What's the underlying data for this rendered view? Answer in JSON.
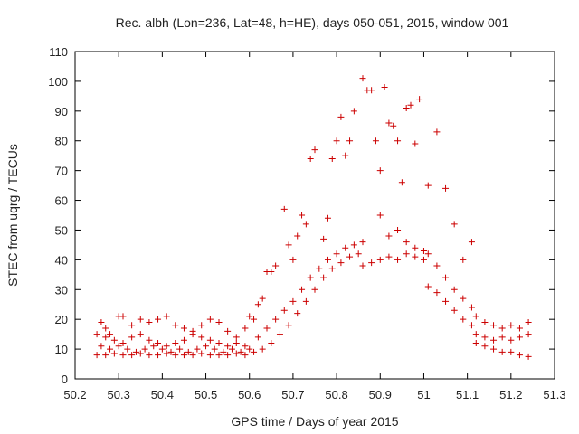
{
  "chart_data": {
    "type": "scatter",
    "title": "Rec. albh (Lon=236, Lat=48, h=HE), days 050-051, 2015, window 001",
    "xlabel": "GPS time / Days of year 2015",
    "ylabel": "STEC from uqrg / TECUs",
    "xlim": [
      50.2,
      51.3
    ],
    "ylim": [
      0,
      110
    ],
    "xticks": [
      "50.2",
      "50.3",
      "50.4",
      "50.5",
      "50.6",
      "50.7",
      "50.8",
      "50.9",
      "51",
      "51.1",
      "51.2",
      "51.3"
    ],
    "yticks": [
      "0",
      "10",
      "20",
      "30",
      "40",
      "50",
      "60",
      "70",
      "80",
      "90",
      "100",
      "110"
    ],
    "grid": false,
    "legend": "none",
    "marker": "plus",
    "series_color": "#cc0000",
    "series": [
      {
        "points": [
          [
            50.26,
            19
          ],
          [
            50.27,
            17
          ],
          [
            50.28,
            15
          ],
          [
            50.3,
            21
          ],
          [
            50.31,
            21
          ],
          [
            50.33,
            18
          ],
          [
            50.35,
            20
          ],
          [
            50.37,
            19
          ],
          [
            50.39,
            20
          ],
          [
            50.41,
            21
          ],
          [
            50.43,
            18
          ],
          [
            50.45,
            17
          ],
          [
            50.47,
            16
          ],
          [
            50.49,
            18
          ],
          [
            50.51,
            20
          ],
          [
            50.53,
            19
          ],
          [
            50.55,
            16
          ],
          [
            50.57,
            14
          ],
          [
            50.59,
            17
          ],
          [
            50.6,
            21
          ],
          [
            50.25,
            15
          ],
          [
            50.27,
            14
          ],
          [
            50.29,
            13
          ],
          [
            50.31,
            12
          ],
          [
            50.33,
            14
          ],
          [
            50.35,
            15
          ],
          [
            50.37,
            13
          ],
          [
            50.39,
            12
          ],
          [
            50.41,
            11
          ],
          [
            50.43,
            12
          ],
          [
            50.45,
            13
          ],
          [
            50.47,
            15
          ],
          [
            50.49,
            14
          ],
          [
            50.51,
            13
          ],
          [
            50.53,
            12
          ],
          [
            50.55,
            11
          ],
          [
            50.57,
            12
          ],
          [
            50.59,
            11
          ],
          [
            50.26,
            11
          ],
          [
            50.28,
            10
          ],
          [
            50.3,
            11
          ],
          [
            50.32,
            10
          ],
          [
            50.34,
            9
          ],
          [
            50.36,
            10
          ],
          [
            50.38,
            11
          ],
          [
            50.4,
            10
          ],
          [
            50.42,
            9
          ],
          [
            50.44,
            10
          ],
          [
            50.46,
            9
          ],
          [
            50.48,
            10
          ],
          [
            50.5,
            11
          ],
          [
            50.52,
            10
          ],
          [
            50.54,
            9
          ],
          [
            50.56,
            10
          ],
          [
            50.58,
            9
          ],
          [
            50.6,
            10
          ],
          [
            50.25,
            8
          ],
          [
            50.27,
            8
          ],
          [
            50.29,
            8.5
          ],
          [
            50.31,
            8
          ],
          [
            50.33,
            8
          ],
          [
            50.35,
            8.5
          ],
          [
            50.37,
            8
          ],
          [
            50.39,
            8
          ],
          [
            50.41,
            8.5
          ],
          [
            50.43,
            8
          ],
          [
            50.45,
            8
          ],
          [
            50.47,
            8
          ],
          [
            50.49,
            8.5
          ],
          [
            50.51,
            8
          ],
          [
            50.53,
            8
          ],
          [
            50.55,
            8
          ],
          [
            50.57,
            8.5
          ],
          [
            50.59,
            8
          ],
          [
            50.61,
            9
          ],
          [
            50.61,
            20
          ],
          [
            50.62,
            25
          ],
          [
            50.63,
            27
          ],
          [
            50.64,
            36
          ],
          [
            50.65,
            36
          ],
          [
            50.66,
            38
          ],
          [
            50.68,
            57
          ],
          [
            50.69,
            45
          ],
          [
            50.7,
            40
          ],
          [
            50.71,
            48
          ],
          [
            50.72,
            55
          ],
          [
            50.73,
            52
          ],
          [
            50.74,
            74
          ],
          [
            50.75,
            77
          ],
          [
            50.77,
            47
          ],
          [
            50.78,
            54
          ],
          [
            50.79,
            74
          ],
          [
            50.8,
            80
          ],
          [
            50.81,
            88
          ],
          [
            50.82,
            75
          ],
          [
            50.62,
            14
          ],
          [
            50.64,
            17
          ],
          [
            50.66,
            20
          ],
          [
            50.68,
            23
          ],
          [
            50.7,
            26
          ],
          [
            50.72,
            30
          ],
          [
            50.74,
            34
          ],
          [
            50.76,
            37
          ],
          [
            50.78,
            40
          ],
          [
            50.8,
            42
          ],
          [
            50.82,
            44
          ],
          [
            50.84,
            45
          ],
          [
            50.86,
            46
          ],
          [
            50.63,
            10
          ],
          [
            50.65,
            12
          ],
          [
            50.67,
            15
          ],
          [
            50.69,
            18
          ],
          [
            50.71,
            22
          ],
          [
            50.73,
            26
          ],
          [
            50.75,
            30
          ],
          [
            50.77,
            34
          ],
          [
            50.79,
            37
          ],
          [
            50.81,
            39
          ],
          [
            50.83,
            41
          ],
          [
            50.85,
            42
          ],
          [
            50.83,
            80
          ],
          [
            50.84,
            90
          ],
          [
            50.86,
            101
          ],
          [
            50.87,
            97
          ],
          [
            50.88,
            97
          ],
          [
            50.89,
            80
          ],
          [
            50.9,
            70
          ],
          [
            50.91,
            98
          ],
          [
            50.92,
            86
          ],
          [
            50.93,
            85
          ],
          [
            50.94,
            80
          ],
          [
            50.95,
            66
          ],
          [
            50.96,
            91
          ],
          [
            50.97,
            92
          ],
          [
            50.98,
            79
          ],
          [
            50.99,
            94
          ],
          [
            50.86,
            38
          ],
          [
            50.88,
            39
          ],
          [
            50.9,
            40
          ],
          [
            50.92,
            41
          ],
          [
            50.94,
            40
          ],
          [
            50.96,
            42
          ],
          [
            50.98,
            41
          ],
          [
            51.0,
            40
          ],
          [
            50.9,
            55
          ],
          [
            50.92,
            48
          ],
          [
            50.94,
            50
          ],
          [
            50.96,
            46
          ],
          [
            50.98,
            44
          ],
          [
            51.0,
            43
          ],
          [
            51.01,
            65
          ],
          [
            51.03,
            83
          ],
          [
            51.05,
            64
          ],
          [
            51.07,
            52
          ],
          [
            51.09,
            40
          ],
          [
            51.11,
            46
          ],
          [
            51.01,
            42
          ],
          [
            51.03,
            38
          ],
          [
            51.05,
            34
          ],
          [
            51.07,
            30
          ],
          [
            51.09,
            27
          ],
          [
            51.11,
            24
          ],
          [
            51.01,
            31
          ],
          [
            51.03,
            29
          ],
          [
            51.05,
            26
          ],
          [
            51.07,
            23
          ],
          [
            51.09,
            20
          ],
          [
            51.11,
            18
          ],
          [
            51.12,
            21
          ],
          [
            51.14,
            19
          ],
          [
            51.16,
            18
          ],
          [
            51.18,
            17
          ],
          [
            51.2,
            18
          ],
          [
            51.22,
            17
          ],
          [
            51.24,
            19
          ],
          [
            51.12,
            15
          ],
          [
            51.14,
            14
          ],
          [
            51.16,
            13
          ],
          [
            51.18,
            14
          ],
          [
            51.2,
            13
          ],
          [
            51.22,
            14
          ],
          [
            51.24,
            15
          ],
          [
            51.12,
            12
          ],
          [
            51.14,
            11
          ],
          [
            51.16,
            10
          ],
          [
            51.18,
            9
          ],
          [
            51.2,
            9
          ],
          [
            51.22,
            8
          ],
          [
            51.24,
            7.5
          ]
        ]
      }
    ]
  }
}
